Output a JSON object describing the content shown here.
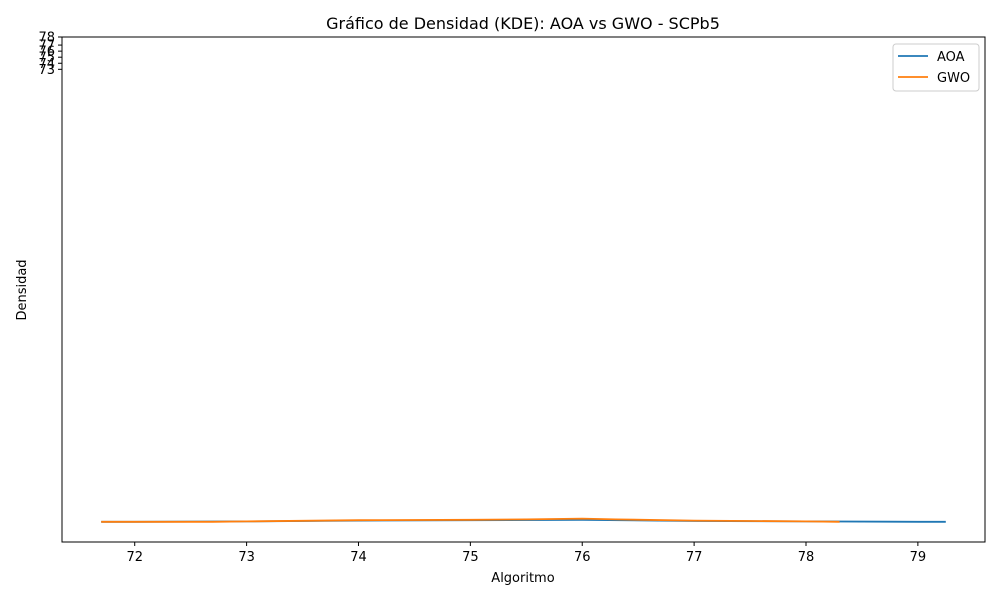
{
  "chart_data": {
    "type": "line",
    "title": "Gráfico de Densidad (KDE): AOA vs GWO - SCPb5",
    "xlabel": "Algoritmo",
    "ylabel": "Densidad",
    "xlim": [
      71.35,
      79.6
    ],
    "xticks": [
      72,
      73,
      74,
      75,
      76,
      77,
      78,
      79
    ],
    "ylim": [
      -0.05,
      1.2
    ],
    "yticks": [
      {
        "label": "73",
        "value": 1.12
      },
      {
        "label": "74",
        "value": 1.135
      },
      {
        "label": "75",
        "value": 1.15
      },
      {
        "label": "76",
        "value": 1.165
      },
      {
        "label": "77",
        "value": 1.18
      },
      {
        "label": "78",
        "value": 1.2
      }
    ],
    "grid": false,
    "legend_position": "top-right",
    "series": [
      {
        "name": "AOA",
        "color": "#1f77b4",
        "x": [
          71.7,
          72,
          73,
          74,
          75,
          76,
          77,
          78,
          79,
          79.25
        ],
        "y": [
          0.0,
          0.0,
          0.001,
          0.003,
          0.004,
          0.005,
          0.002,
          0.001,
          0.0,
          0.0
        ]
      },
      {
        "name": "GWO",
        "color": "#ff7f0e",
        "x": [
          71.7,
          72,
          72.7,
          73,
          74,
          75,
          75.5,
          76,
          76.3,
          77,
          77.5,
          78,
          78.3
        ],
        "y": [
          0.0,
          0.0,
          0.0,
          0.001,
          0.004,
          0.005,
          0.006,
          0.008,
          0.006,
          0.003,
          0.002,
          0.001,
          0.0
        ]
      }
    ]
  }
}
